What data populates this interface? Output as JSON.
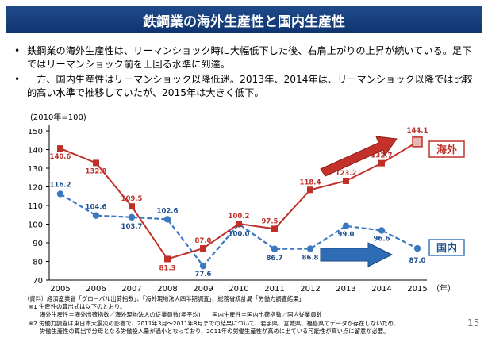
{
  "title": "鉄鋼業の海外生産性と国内生産性",
  "bullets": [
    "鉄鋼業の海外生産性は、リーマンショック時に大幅低下した後、右肩上がりの上昇が続いている。足下ではリーマンショック前を上回る水準に到達。",
    "一方、国内生産性はリーマンショック以降低迷。2013年、2014年は、リーマンショック以降では比較的高い水準で推移していたが、2015年は大きく低下。"
  ],
  "footnotes": [
    "（資料）経済産業省「グローバル出荷指数」、「海外現地法人四半期調査」、総務省統計局「労働力調査結果」",
    "※1 生産性の算出式は以下のとおり。",
    "海外生産性＝海外出荷指数／海外現地法人の従業員数(年平均)　　国内生産性＝国内出荷指数／国内従業員数",
    "※2 労働力調査は東日本大震災の影響で、2011年3月〜2011年8月までの結果について、岩手県、宮城県、福島県のデータが存在しないため、",
    "労働生産性の算出で分母となる労働投入量が過小となっており、2011年の労働生産性が高めに出ている可能性が高い点に留意が必要。"
  ],
  "page_number": "15",
  "colors": {
    "overseas": "#c0302a",
    "domestic": "#3a78c2",
    "title_bg": "#1f4a8a"
  },
  "chart_data": {
    "type": "line",
    "ylabel": "(2010年=100)",
    "xlabel": "（年）",
    "ylim": [
      70,
      150
    ],
    "yticks": [
      70,
      80,
      90,
      100,
      110,
      120,
      130,
      140,
      150
    ],
    "grid": false,
    "categories": [
      "2005",
      "2006",
      "2007",
      "2008",
      "2009",
      "2010",
      "2011",
      "2012",
      "2013",
      "2014",
      "2015"
    ],
    "series": [
      {
        "name": "海外",
        "style": "solid",
        "color": "#c0302a",
        "values": [
          140.6,
          132.8,
          109.5,
          81.3,
          87.0,
          100.2,
          97.5,
          118.4,
          123.2,
          132.7,
          144.1
        ],
        "labels": [
          "140.6",
          "132.8",
          "109.5",
          "81.3",
          "87.0",
          "100.2",
          "97.5",
          "118.4",
          "123.2",
          "132.7",
          "144.1"
        ]
      },
      {
        "name": "国内",
        "style": "dashed",
        "color": "#3a78c2",
        "values": [
          116.2,
          104.6,
          103.7,
          102.6,
          77.6,
          100.0,
          86.7,
          86.8,
          99.0,
          96.6,
          87.0
        ],
        "labels": [
          "116.2",
          "104.6",
          "103.7",
          "102.6",
          "77.6",
          "100.0",
          "86.7",
          "86.8",
          "99.0",
          "96.6",
          "87.0"
        ]
      }
    ]
  }
}
